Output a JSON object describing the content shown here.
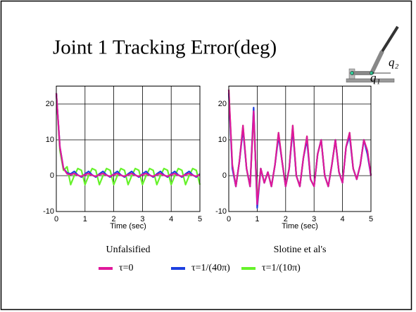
{
  "title": "Joint 1 Tracking Error(deg)",
  "annotations": [
    "q₂",
    "q₁"
  ],
  "chart_data": [
    {
      "type": "line",
      "subtitle": "Unfalsified",
      "xlabel": "Time (sec)",
      "xlim": [
        0,
        5
      ],
      "xticks": [
        0,
        1,
        2,
        3,
        4,
        5
      ],
      "ylim": [
        -10,
        25
      ],
      "yticks": [
        -10,
        0,
        10,
        20
      ],
      "grid": true,
      "x": [
        0,
        0.125,
        0.25,
        0.375,
        0.5,
        0.625,
        0.75,
        0.875,
        1,
        1.125,
        1.25,
        1.375,
        1.5,
        1.625,
        1.75,
        1.875,
        2,
        2.125,
        2.25,
        2.375,
        2.5,
        2.625,
        2.75,
        2.875,
        3,
        3.125,
        3.25,
        3.375,
        3.5,
        3.625,
        3.75,
        3.875,
        4,
        4.125,
        4.25,
        4.375,
        4.5,
        4.625,
        4.75,
        4.875,
        5
      ],
      "series": [
        {
          "name": "τ=0",
          "color": "#e0189b",
          "values": [
            23,
            8,
            2,
            0.5,
            0.3,
            0.6,
            0.1,
            -0.2,
            0.3,
            0.6,
            0.1,
            -0.2,
            0.3,
            0.6,
            0.1,
            -0.2,
            0.3,
            0.6,
            0.1,
            -0.2,
            0.3,
            0.6,
            0.1,
            -0.2,
            0.3,
            0.6,
            0.1,
            -0.2,
            0.3,
            0.6,
            0.1,
            -0.2,
            0.3,
            0.6,
            0.1,
            -0.2,
            0.3,
            0.6,
            0.1,
            -0.2,
            0.3
          ]
        },
        {
          "name": "τ=1/(40π)",
          "color": "#1c3fe0",
          "values": [
            23,
            8,
            2,
            0.8,
            0.5,
            1.2,
            0.2,
            -0.4,
            0.5,
            1.2,
            0.2,
            -0.4,
            0.5,
            1.2,
            0.2,
            -0.4,
            0.5,
            1.2,
            0.2,
            -0.4,
            0.5,
            1.2,
            0.2,
            -0.4,
            0.5,
            1.2,
            0.2,
            -0.4,
            0.5,
            1.2,
            0.2,
            -0.4,
            0.5,
            1.2,
            0.2,
            -0.4,
            0.5,
            1.2,
            0.2,
            -0.4,
            0.5
          ]
        },
        {
          "name": "τ=1/(10π)",
          "color": "#66f22a",
          "values": [
            23,
            7,
            1.5,
            2.5,
            -2.5,
            0,
            2,
            1.5,
            -2.5,
            0,
            2,
            1.5,
            -2.5,
            0,
            2,
            1.5,
            -2.5,
            0,
            2,
            1.5,
            -2.5,
            0,
            2,
            1.5,
            -2.5,
            0,
            2,
            1.5,
            -2.5,
            0,
            2,
            1.5,
            -2.5,
            0,
            2,
            1.5,
            -2.5,
            0,
            2,
            1.5,
            -2.5
          ]
        }
      ]
    },
    {
      "type": "line",
      "subtitle": "Slotine et al's",
      "xlabel": "Time (sec)",
      "xlim": [
        0,
        5
      ],
      "xticks": [
        0,
        1,
        2,
        3,
        4,
        5
      ],
      "ylim": [
        -10,
        25
      ],
      "yticks": [
        -10,
        0,
        10,
        20
      ],
      "grid": true,
      "x": [
        0,
        0.125,
        0.25,
        0.375,
        0.5,
        0.625,
        0.75,
        0.875,
        1,
        1.125,
        1.25,
        1.375,
        1.5,
        1.625,
        1.75,
        1.875,
        2,
        2.125,
        2.25,
        2.375,
        2.5,
        2.625,
        2.75,
        2.875,
        3,
        3.125,
        3.25,
        3.375,
        3.5,
        3.625,
        3.75,
        3.875,
        4,
        4.125,
        4.25,
        4.375,
        4.5,
        4.625,
        4.75,
        4.875,
        5
      ],
      "series": [
        {
          "color": "#e0189b",
          "values": [
            24,
            3,
            -3,
            4,
            14,
            2,
            -3,
            18,
            -8,
            2,
            -2,
            1,
            -3,
            3,
            12,
            4,
            -3,
            2,
            14,
            0,
            -3,
            5,
            11,
            -1,
            -3,
            6,
            10,
            0,
            -3,
            3,
            10,
            1,
            -2,
            8,
            12,
            2,
            -1,
            3,
            10,
            7,
            0
          ]
        },
        {
          "color": "#1c3fe0",
          "values": [
            23,
            2,
            -3,
            4,
            13,
            2,
            -3,
            19,
            -9,
            2,
            -2,
            1,
            -3,
            3,
            11,
            4,
            -3,
            2,
            13,
            0,
            -3,
            5,
            10,
            -1,
            -3,
            6,
            10,
            0,
            -3,
            3,
            10,
            1,
            -2,
            8,
            11,
            2,
            -1,
            3,
            10,
            6,
            0
          ]
        },
        {
          "color": "#66f22a",
          "values": [
            24,
            3,
            -3,
            4,
            14,
            2,
            -3,
            17,
            -7,
            2,
            -2,
            1,
            -3,
            3,
            12,
            4,
            -3,
            2,
            14,
            0,
            -3,
            5,
            11,
            -1,
            -3,
            6,
            10,
            0,
            -3,
            3,
            10,
            1,
            -2,
            8,
            12,
            2,
            -1,
            3,
            10,
            7,
            0
          ]
        }
      ]
    }
  ]
}
